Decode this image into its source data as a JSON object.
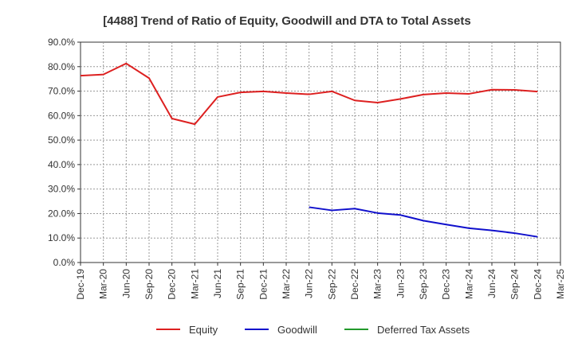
{
  "chart_data": {
    "type": "line",
    "title": "[4488]  Trend of Ratio of Equity, Goodwill and DTA to Total Assets",
    "xlabel": "",
    "ylabel": "",
    "ylim": [
      0,
      90
    ],
    "y_ticks": [
      "0.0%",
      "10.0%",
      "20.0%",
      "30.0%",
      "40.0%",
      "50.0%",
      "60.0%",
      "70.0%",
      "80.0%",
      "90.0%"
    ],
    "x_labels": [
      "Dec-19",
      "Mar-20",
      "Jun-20",
      "Sep-20",
      "Dec-20",
      "Mar-21",
      "Jun-21",
      "Sep-21",
      "Dec-21",
      "Mar-22",
      "Jun-22",
      "Sep-22",
      "Dec-22",
      "Mar-23",
      "Jun-23",
      "Sep-23",
      "Dec-23",
      "Mar-24",
      "Jun-24",
      "Sep-24",
      "Dec-24",
      "Mar-25"
    ],
    "grid": true,
    "legend_position": "bottom",
    "series": [
      {
        "name": "Equity",
        "color": "#dd2020",
        "values": [
          76.3,
          76.8,
          81.3,
          75.3,
          58.8,
          56.5,
          67.6,
          69.5,
          69.9,
          69.2,
          68.7,
          69.9,
          66.2,
          65.3,
          66.8,
          68.6,
          69.2,
          68.9,
          70.6,
          70.5,
          69.8,
          null
        ]
      },
      {
        "name": "Goodwill",
        "color": "#1010cc",
        "values": [
          null,
          null,
          null,
          null,
          null,
          null,
          null,
          null,
          null,
          null,
          22.6,
          21.3,
          22.0,
          20.2,
          19.4,
          17.1,
          15.5,
          14.0,
          13.1,
          12.0,
          10.5,
          null
        ]
      },
      {
        "name": "Deferred Tax Assets",
        "color": "#22992b",
        "values": [
          null,
          null,
          null,
          null,
          null,
          null,
          null,
          null,
          null,
          null,
          null,
          null,
          null,
          null,
          null,
          null,
          null,
          null,
          null,
          null,
          null,
          null
        ]
      }
    ]
  }
}
